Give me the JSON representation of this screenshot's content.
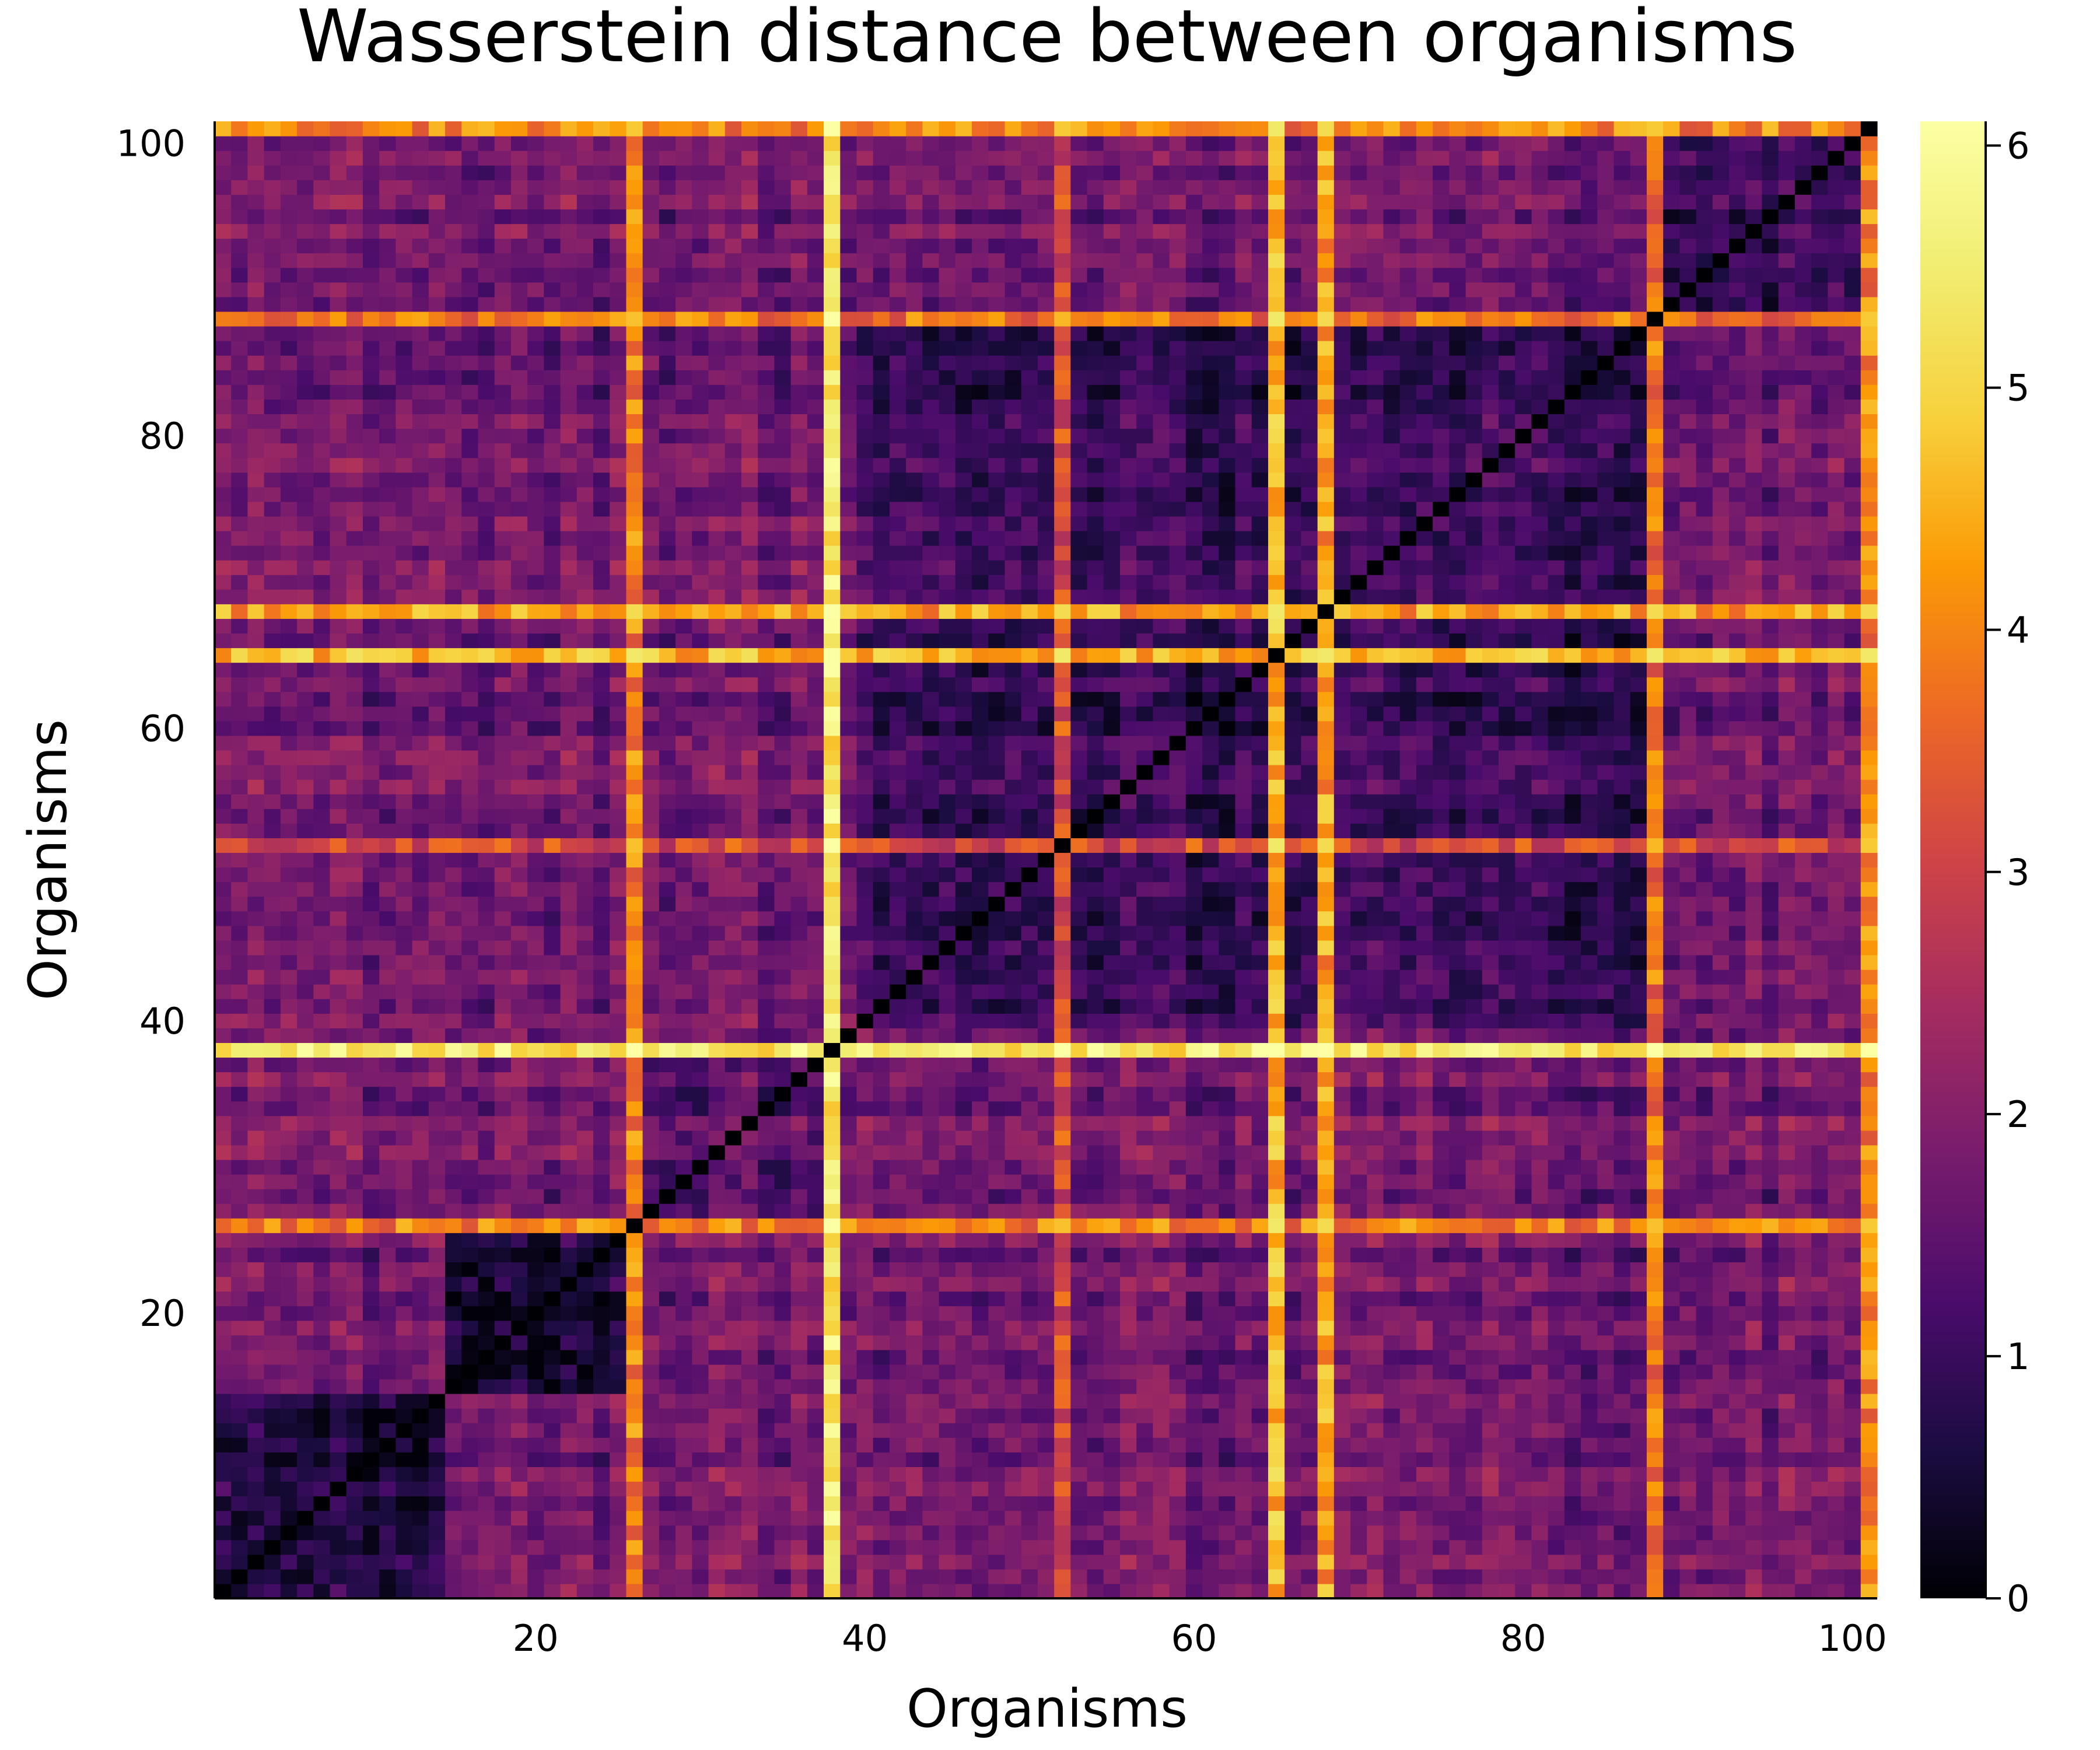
{
  "chart_data": {
    "type": "heatmap",
    "title": "Wasserstein distance between organisms",
    "xlabel": "Organisms",
    "ylabel": "Organisms",
    "n": 101,
    "xlim": [
      0.5,
      101.5
    ],
    "ylim": [
      0.5,
      101.5
    ],
    "xticks": [
      20,
      40,
      60,
      80,
      100
    ],
    "yticks": [
      20,
      40,
      60,
      80,
      100
    ],
    "colorbar": {
      "colormap": "inferno",
      "range": [
        0,
        6.1
      ],
      "ticks": [
        0,
        1,
        2,
        3,
        4,
        5,
        6
      ]
    },
    "diagonal_value": 0,
    "outlier_organisms": [
      {
        "organism": 26,
        "distance_level": 3.9
      },
      {
        "organism": 38,
        "distance_level": 5.4
      },
      {
        "organism": 52,
        "distance_level": 3.2
      },
      {
        "organism": 65,
        "distance_level": 4.6
      },
      {
        "organism": 68,
        "distance_level": 4.3
      },
      {
        "organism": 88,
        "distance_level": 3.8
      },
      {
        "organism": 101,
        "distance_level": 4.0
      }
    ],
    "cluster_blocks": [
      {
        "organisms": [
          1,
          14
        ],
        "within_distance": 0.5
      },
      {
        "organisms": [
          15,
          25
        ],
        "within_distance": 0.4
      },
      {
        "organisms": [
          27,
          37
        ],
        "within_distance": 1.3
      },
      {
        "organisms": [
          40,
          87
        ],
        "within_distance": 1.0
      },
      {
        "organisms": [
          89,
          100
        ],
        "within_distance": 1.0
      }
    ],
    "baseline_between_clusters": 1.7,
    "max_value": 6.1
  }
}
